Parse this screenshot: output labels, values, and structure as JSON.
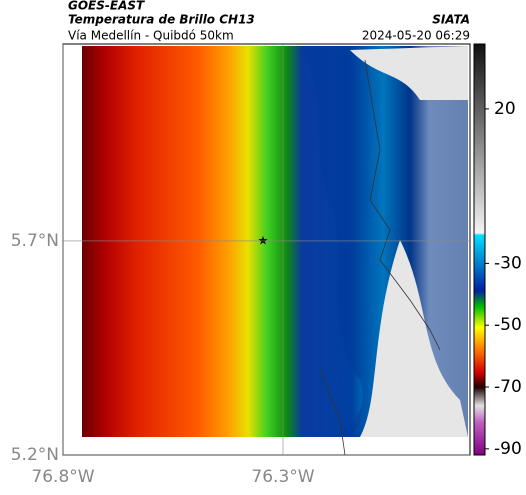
{
  "header": {
    "source": "GOES-EAST",
    "title": "Temperatura de Brillo CH13",
    "subtitle": "Vía Medellín - Quibdó 50km",
    "brand": "SIATA",
    "timestamp": "2024-05-20 06:29"
  },
  "map": {
    "lat_lim": [
      5.2,
      6.16
    ],
    "lon_lim": [
      -76.8,
      -75.875
    ],
    "lat_ticks": [
      {
        "value": 5.2,
        "label": "5.2°N"
      },
      {
        "value": 5.7,
        "label": "5.7°N"
      }
    ],
    "lon_ticks": [
      {
        "value": -76.8,
        "label": "76.8°W"
      },
      {
        "value": -76.3,
        "label": "76.3°W"
      }
    ]
  },
  "colorbar": {
    "lim": [
      41,
      -92
    ],
    "ticks": [
      20,
      -30,
      -50,
      -70,
      -90
    ]
  }
}
